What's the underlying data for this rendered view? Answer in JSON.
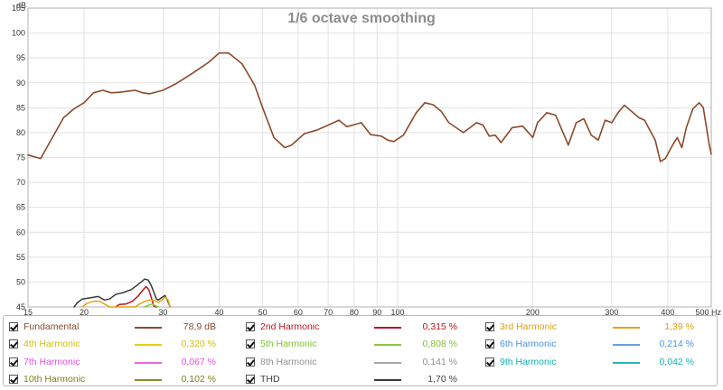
{
  "chart_data": {
    "type": "line",
    "title": "1/6 octave smoothing",
    "ylabel": "dB",
    "xlabel": "Hz",
    "x_scale": "log",
    "xlim": [
      15,
      500
    ],
    "ylim": [
      45,
      105
    ],
    "grid": true,
    "x_ticks": [
      {
        "v": 15,
        "label": "15"
      },
      {
        "v": 20,
        "label": "20"
      },
      {
        "v": 30,
        "label": "30"
      },
      {
        "v": 40,
        "label": "40"
      },
      {
        "v": 50,
        "label": "50"
      },
      {
        "v": 60,
        "label": "60"
      },
      {
        "v": 70,
        "label": "70"
      },
      {
        "v": 80,
        "label": "80"
      },
      {
        "v": 90,
        "label": "90"
      },
      {
        "v": 100,
        "label": "100"
      },
      {
        "v": 200,
        "label": "200"
      },
      {
        "v": 300,
        "label": "300"
      },
      {
        "v": 400,
        "label": "400"
      },
      {
        "v": 500,
        "label": "500 Hz"
      }
    ],
    "y_ticks": [
      45,
      50,
      55,
      60,
      65,
      70,
      75,
      80,
      85,
      90,
      95,
      100,
      105
    ],
    "series": [
      {
        "name": "Fundamental",
        "color": "#8b4a2b",
        "points": [
          [
            15,
            75.5
          ],
          [
            16,
            74.8
          ],
          [
            17,
            79
          ],
          [
            18,
            83
          ],
          [
            19,
            84.8
          ],
          [
            20,
            86
          ],
          [
            21,
            88
          ],
          [
            22,
            88.5
          ],
          [
            23,
            88
          ],
          [
            24,
            88.1
          ],
          [
            25,
            88.3
          ],
          [
            26,
            88.5
          ],
          [
            27,
            88
          ],
          [
            28,
            87.8
          ],
          [
            30,
            88.5
          ],
          [
            32,
            89.8
          ],
          [
            35,
            92
          ],
          [
            38,
            94.2
          ],
          [
            40,
            96
          ],
          [
            42,
            96
          ],
          [
            45,
            93.8
          ],
          [
            48,
            89.5
          ],
          [
            50,
            85
          ],
          [
            53,
            79
          ],
          [
            56,
            77
          ],
          [
            58,
            77.5
          ],
          [
            62,
            79.8
          ],
          [
            66,
            80.5
          ],
          [
            70,
            81.5
          ],
          [
            74,
            82.5
          ],
          [
            77,
            81.2
          ],
          [
            80,
            81.6
          ],
          [
            83,
            82
          ],
          [
            87,
            79.6
          ],
          [
            92,
            79.3
          ],
          [
            95,
            78.5
          ],
          [
            98,
            78.2
          ],
          [
            103,
            79.5
          ],
          [
            110,
            84
          ],
          [
            115,
            86
          ],
          [
            120,
            85.6
          ],
          [
            125,
            84.3
          ],
          [
            130,
            82
          ],
          [
            135,
            81
          ],
          [
            140,
            80
          ],
          [
            145,
            81
          ],
          [
            150,
            82
          ],
          [
            155,
            81.5
          ],
          [
            160,
            79.3
          ],
          [
            165,
            79.5
          ],
          [
            170,
            78
          ],
          [
            180,
            81
          ],
          [
            190,
            81.3
          ],
          [
            200,
            79
          ],
          [
            205,
            82
          ],
          [
            215,
            84
          ],
          [
            225,
            83.5
          ],
          [
            235,
            79.5
          ],
          [
            240,
            77.5
          ],
          [
            250,
            82
          ],
          [
            260,
            82.8
          ],
          [
            270,
            79.5
          ],
          [
            280,
            78.5
          ],
          [
            290,
            82.5
          ],
          [
            300,
            82
          ],
          [
            310,
            84
          ],
          [
            320,
            85.5
          ],
          [
            330,
            84.5
          ],
          [
            345,
            83
          ],
          [
            355,
            82.5
          ],
          [
            365,
            80.5
          ],
          [
            375,
            78.5
          ],
          [
            385,
            74.2
          ],
          [
            395,
            74.8
          ],
          [
            410,
            77.5
          ],
          [
            420,
            79
          ],
          [
            430,
            77
          ],
          [
            440,
            81
          ],
          [
            455,
            84.8
          ],
          [
            470,
            86
          ],
          [
            480,
            85
          ],
          [
            490,
            80
          ],
          [
            495,
            77.5
          ],
          [
            500,
            75.7
          ]
        ]
      },
      {
        "name": "THD",
        "color": "#3a3a3a",
        "points": [
          [
            19,
            45
          ],
          [
            19.3,
            45.8
          ],
          [
            19.8,
            46.6
          ],
          [
            20.5,
            46.8
          ],
          [
            21.5,
            47.1
          ],
          [
            22.2,
            46.4
          ],
          [
            22.8,
            46.6
          ],
          [
            23.5,
            47.5
          ],
          [
            24.5,
            47.9
          ],
          [
            25.5,
            48.5
          ],
          [
            26.2,
            49.3
          ],
          [
            26.8,
            50
          ],
          [
            27.3,
            50.6
          ],
          [
            27.8,
            50.4
          ],
          [
            28.2,
            49.4
          ],
          [
            28.6,
            48
          ],
          [
            29,
            46.6
          ],
          [
            29.3,
            46.4
          ],
          [
            29.8,
            46.9
          ],
          [
            30.3,
            47.3
          ],
          [
            30.7,
            46.3
          ],
          [
            31.1,
            45
          ]
        ]
      },
      {
        "name": "2nd Harmonic",
        "color": "#b8141e",
        "points": [
          [
            23.5,
            45
          ],
          [
            24,
            45.5
          ],
          [
            24.8,
            45.6
          ],
          [
            25.6,
            46.1
          ],
          [
            26.4,
            47.2
          ],
          [
            27,
            48.3
          ],
          [
            27.5,
            49.1
          ],
          [
            27.9,
            48.4
          ],
          [
            28.3,
            46.6
          ],
          [
            28.6,
            45.2
          ],
          [
            29,
            45
          ]
        ]
      },
      {
        "name": "3rd Harmonic",
        "color": "#e6a317",
        "points": [
          [
            19.8,
            45
          ],
          [
            20.3,
            45.7
          ],
          [
            20.9,
            46.1
          ],
          [
            21.6,
            46.2
          ],
          [
            22.2,
            45.6
          ],
          [
            22.8,
            45
          ],
          [
            26,
            45
          ],
          [
            26.6,
            45.6
          ],
          [
            27.3,
            46.1
          ],
          [
            28,
            46.4
          ],
          [
            28.7,
            46.3
          ],
          [
            29.3,
            45.9
          ],
          [
            29.8,
            46.4
          ],
          [
            30.3,
            47
          ],
          [
            30.8,
            46.4
          ],
          [
            31.1,
            45
          ]
        ]
      },
      {
        "name": "5th Harmonic",
        "color": "#8ec63f",
        "points": [
          [
            27.2,
            45
          ],
          [
            27.8,
            45.3
          ],
          [
            28.4,
            45.6
          ],
          [
            28.9,
            45.2
          ],
          [
            29.3,
            45
          ]
        ]
      }
    ]
  },
  "legend": [
    {
      "name": "Fundamental",
      "value": "78,9 dB",
      "color": "#8b4a2b",
      "text_color": "#8b4a2b"
    },
    {
      "name": "2nd Harmonic",
      "value": "0,315 %",
      "color": "#b8141e",
      "text_color": "#c0141c"
    },
    {
      "name": "3rd Harmonic",
      "value": "1,39 %",
      "color": "#e6a317",
      "text_color": "#e0a000"
    },
    {
      "name": "4th Harmonic",
      "value": "0,320 %",
      "color": "#e3d215",
      "text_color": "#d0c000"
    },
    {
      "name": "5th Harmonic",
      "value": "0,808 %",
      "color": "#8ec63f",
      "text_color": "#80c030"
    },
    {
      "name": "6th Harmonic",
      "value": "0,214 %",
      "color": "#6a9de0",
      "text_color": "#5090e0"
    },
    {
      "name": "7th Harmonic",
      "value": "0,067 %",
      "color": "#e36ae0",
      "text_color": "#e050e0"
    },
    {
      "name": "8th Harmonic",
      "value": "0,141 %",
      "color": "#a8a8a8",
      "text_color": "#909090"
    },
    {
      "name": "9th Harmonic",
      "value": "0,042 %",
      "color": "#23b8b8",
      "text_color": "#10b0b0"
    },
    {
      "name": "10th Harmonic",
      "value": "0,102 %",
      "color": "#8c8c2a",
      "text_color": "#808020"
    },
    {
      "name": "THD",
      "value": "1,70 %",
      "color": "#3a3a3a",
      "text_color": "#404040"
    }
  ]
}
